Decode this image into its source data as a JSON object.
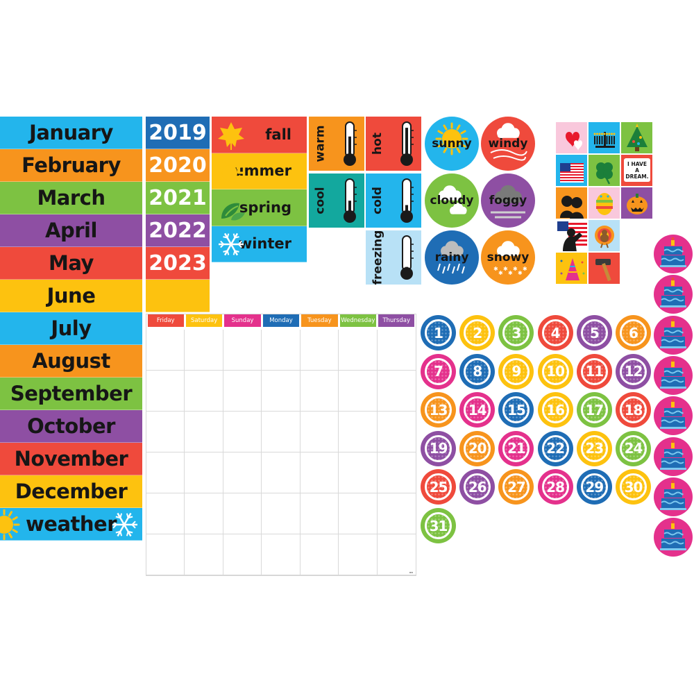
{
  "months": [
    {
      "label": "January",
      "color": "#23b5ec"
    },
    {
      "label": "February",
      "color": "#f7941d"
    },
    {
      "label": "March",
      "color": "#7dc242"
    },
    {
      "label": "April",
      "color": "#8e4fa3"
    },
    {
      "label": "May",
      "color": "#ef4a3c"
    },
    {
      "label": "June",
      "color": "#fdc20f"
    },
    {
      "label": "July",
      "color": "#23b5ec"
    },
    {
      "label": "August",
      "color": "#f7941d"
    },
    {
      "label": "September",
      "color": "#7dc242"
    },
    {
      "label": "October",
      "color": "#8e4fa3"
    },
    {
      "label": "November",
      "color": "#ef4a3c"
    },
    {
      "label": "December",
      "color": "#fdc20f"
    }
  ],
  "weather_strip": {
    "label": "weather",
    "color": "#23b5ec",
    "icons": [
      "sun-icon",
      "snowflake-icon"
    ]
  },
  "years": [
    {
      "label": "2019",
      "color": "#1f6db5"
    },
    {
      "label": "2020",
      "color": "#f7941d"
    },
    {
      "label": "2021",
      "color": "#7dc242"
    },
    {
      "label": "2022",
      "color": "#8e4fa3"
    },
    {
      "label": "2023",
      "color": "#ef4a3c"
    },
    {
      "label": "",
      "color": "#fdc20f"
    }
  ],
  "seasons": [
    {
      "label": "fall",
      "color": "#ef4a3c",
      "icon": "leaf-icon"
    },
    {
      "label": "summer",
      "color": "#fdc20f",
      "icon": "sun-icon"
    },
    {
      "label": "spring",
      "color": "#7dc242",
      "icon": "sprout-icon"
    },
    {
      "label": "winter",
      "color": "#23b5ec",
      "icon": "snowflake-icon"
    }
  ],
  "temperatures": [
    {
      "label": "warm",
      "color": "#f7941d",
      "level": 0.65
    },
    {
      "label": "hot",
      "color": "#ef4a3c",
      "level": 0.95
    },
    {
      "label": "cool",
      "color": "#13a89e",
      "level": 0.4
    },
    {
      "label": "cold",
      "color": "#23b5ec",
      "level": 0.25
    },
    {
      "label": "freezing",
      "color": "#b8e1f6",
      "level": 0.08
    }
  ],
  "weather_circles": [
    {
      "label": "sunny",
      "color": "#23b5ec",
      "icon": "sun-icon"
    },
    {
      "label": "windy",
      "color": "#ef4a3c",
      "icon": "wind-icon"
    },
    {
      "label": "cloudy",
      "color": "#7dc242",
      "icon": "cloud-icon"
    },
    {
      "label": "foggy",
      "color": "#8e4fa3",
      "icon": "fog-icon"
    },
    {
      "label": "rainy",
      "color": "#1f6db5",
      "icon": "rain-icon"
    },
    {
      "label": "snowy",
      "color": "#f7941d",
      "icon": "snow-icon"
    }
  ],
  "holidays": [
    {
      "name": "hearts-icon",
      "color": "#f9c8dc"
    },
    {
      "name": "menorah-icon",
      "color": "#23b5ec"
    },
    {
      "name": "christmas-tree-icon",
      "color": "#7dc242"
    },
    {
      "name": "us-flag-icon",
      "color": "#23b5ec"
    },
    {
      "name": "clover-icon",
      "color": "#7dc242"
    },
    {
      "name": "i-have-a-dream-icon",
      "color": "#ef4a3c",
      "text": "I HAVE A DREAM."
    },
    {
      "name": "lincoln-washington-icon",
      "color": "#f7941d"
    },
    {
      "name": "easter-egg-icon",
      "color": "#f9c8dc"
    },
    {
      "name": "jack-o-lantern-icon",
      "color": "#8e4fa3"
    },
    {
      "name": "soldier-salute-icon",
      "color": "#ffffff"
    },
    {
      "name": "turkey-icon",
      "color": "#b8e1f6"
    },
    {
      "name": "party-hat-icon",
      "color": "#fdc20f"
    },
    {
      "name": "hammer-icon",
      "color": "#ef4a3c"
    }
  ],
  "birthday": {
    "count": 8,
    "color": "#e4318c",
    "icon": "birthday-cake-icon"
  },
  "calendar": {
    "days": [
      {
        "label": "Friday",
        "color": "#ef4a3c"
      },
      {
        "label": "Saturday",
        "color": "#fdc20f"
      },
      {
        "label": "Sunday",
        "color": "#e4318c"
      },
      {
        "label": "Monday",
        "color": "#1f6db5"
      },
      {
        "label": "Tuesday",
        "color": "#f7941d"
      },
      {
        "label": "Wednesday",
        "color": "#7dc242"
      },
      {
        "label": "Thursday",
        "color": "#8e4fa3"
      }
    ],
    "rows": 6
  },
  "numbers": [
    {
      "n": "1",
      "c": "#1f6db5"
    },
    {
      "n": "2",
      "c": "#fdc20f"
    },
    {
      "n": "3",
      "c": "#7dc242"
    },
    {
      "n": "4",
      "c": "#ef4a3c"
    },
    {
      "n": "5",
      "c": "#8e4fa3"
    },
    {
      "n": "6",
      "c": "#f7941d"
    },
    {
      "n": "7",
      "c": "#e4318c"
    },
    {
      "n": "8",
      "c": "#1f6db5"
    },
    {
      "n": "9",
      "c": "#fdc20f"
    },
    {
      "n": "10",
      "c": "#fdc20f"
    },
    {
      "n": "11",
      "c": "#ef4a3c"
    },
    {
      "n": "12",
      "c": "#8e4fa3"
    },
    {
      "n": "13",
      "c": "#f7941d"
    },
    {
      "n": "14",
      "c": "#e4318c"
    },
    {
      "n": "15",
      "c": "#1f6db5"
    },
    {
      "n": "16",
      "c": "#fdc20f"
    },
    {
      "n": "17",
      "c": "#7dc242"
    },
    {
      "n": "18",
      "c": "#ef4a3c"
    },
    {
      "n": "19",
      "c": "#8e4fa3"
    },
    {
      "n": "20",
      "c": "#f7941d"
    },
    {
      "n": "21",
      "c": "#e4318c"
    },
    {
      "n": "22",
      "c": "#1f6db5"
    },
    {
      "n": "23",
      "c": "#fdc20f"
    },
    {
      "n": "24",
      "c": "#7dc242"
    },
    {
      "n": "25",
      "c": "#ef4a3c"
    },
    {
      "n": "26",
      "c": "#8e4fa3"
    },
    {
      "n": "27",
      "c": "#f7941d"
    },
    {
      "n": "28",
      "c": "#e4318c"
    },
    {
      "n": "29",
      "c": "#1f6db5"
    },
    {
      "n": "30",
      "c": "#fdc20f"
    },
    {
      "n": "31",
      "c": "#7dc242"
    }
  ]
}
